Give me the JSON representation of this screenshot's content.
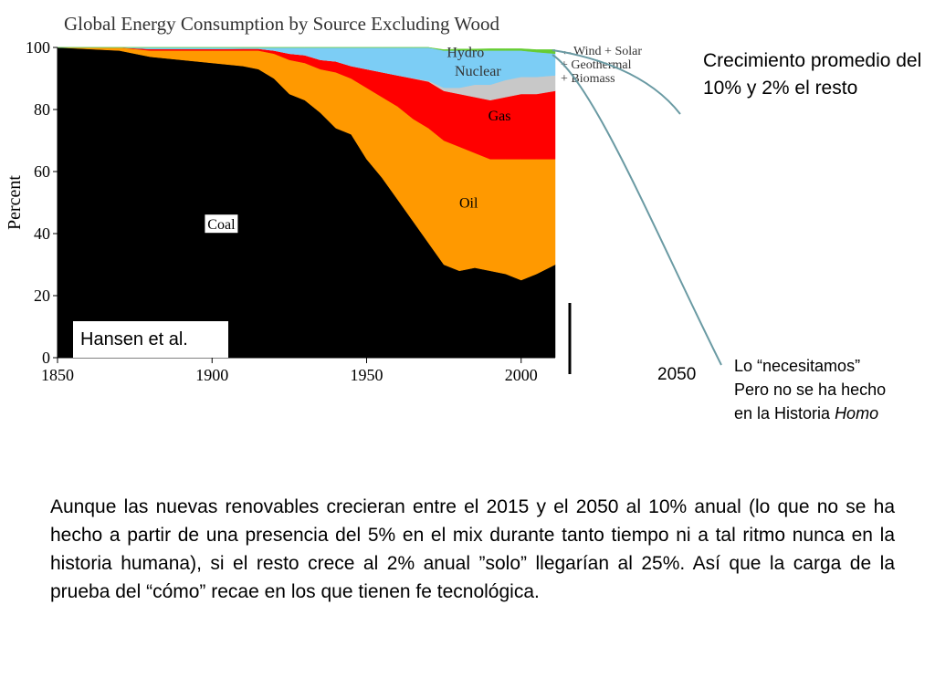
{
  "chart_data": {
    "type": "area",
    "stacked": true,
    "title": "Global Energy Consumption by Source Excluding Wood",
    "ylabel": "Percent",
    "xlim": [
      1850,
      2011
    ],
    "ylim": [
      0,
      100
    ],
    "x_ticks": [
      1850,
      1900,
      1950,
      2000
    ],
    "y_ticks": [
      0,
      20,
      40,
      60,
      80,
      100
    ],
    "x": [
      1850,
      1870,
      1880,
      1890,
      1900,
      1910,
      1915,
      1920,
      1925,
      1930,
      1935,
      1940,
      1945,
      1950,
      1955,
      1960,
      1965,
      1970,
      1975,
      1980,
      1985,
      1990,
      1995,
      2000,
      2005,
      2011
    ],
    "series": [
      {
        "name": "Coal",
        "color": "#000000",
        "label": "Coal",
        "values": [
          100,
          99,
          97,
          96,
          95,
          94,
          93,
          90,
          85,
          83,
          79,
          74,
          72,
          64,
          58,
          51,
          44,
          37,
          30,
          28,
          29,
          28,
          27,
          25,
          27,
          30
        ]
      },
      {
        "name": "Oil",
        "color": "#ff9900",
        "label": "Oil",
        "values": [
          0,
          1,
          2,
          3,
          4,
          5,
          6,
          8,
          11,
          12,
          14,
          18,
          18,
          23,
          26,
          30,
          33,
          37,
          40,
          40,
          37,
          36,
          37,
          39,
          37,
          34
        ]
      },
      {
        "name": "Gas",
        "color": "#ff0000",
        "label": "Gas",
        "values": [
          0,
          0,
          0.5,
          0.5,
          0.5,
          0.6,
          0.6,
          1,
          2,
          2.5,
          3,
          3.5,
          4,
          6,
          8,
          10,
          13,
          15,
          16,
          17,
          18,
          19,
          20,
          21,
          21,
          22
        ]
      },
      {
        "name": "Nuclear",
        "color": "#c8c8c8",
        "label": "Nuclear",
        "values": [
          0,
          0,
          0,
          0,
          0,
          0,
          0,
          0,
          0,
          0,
          0,
          0,
          0,
          0,
          0,
          0,
          0.1,
          0.3,
          1,
          2,
          4,
          5,
          5.5,
          5.5,
          5.5,
          5
        ]
      },
      {
        "name": "Hydro",
        "color": "#7ccdf5",
        "label": "Hydro",
        "values": [
          0,
          0,
          0.5,
          0.5,
          0.5,
          0.4,
          0.4,
          1,
          2,
          2.5,
          4,
          4.5,
          6,
          7,
          8,
          9,
          9.9,
          10.7,
          12,
          12,
          11,
          11,
          9.5,
          8.5,
          8,
          7
        ]
      },
      {
        "name": "Wind + Solar + Geothermal + Biomass",
        "color": "#66cc33",
        "label": "Wind + Solar\n+ Geothermal\n+ Biomass",
        "values": [
          0,
          0,
          0,
          0,
          0,
          0,
          0,
          0,
          0,
          0,
          0,
          0,
          0,
          0,
          0,
          0,
          0,
          0,
          0.3,
          0.5,
          0.5,
          0.6,
          0.6,
          0.6,
          0.8,
          1.3
        ]
      }
    ],
    "annotations": [
      "Hansen et al.",
      "Wind + Solar",
      "+ Geothermal",
      "+ Biomass"
    ]
  },
  "side_notes": {
    "growth": "Crecimiento promedio del 10% y 2% el resto",
    "year_2050": "2050",
    "need_line1": "Lo “necesitamos”",
    "need_line2": "Pero no se ha hecho",
    "need_line3_prefix": "en la Historia ",
    "need_line3_italic": "Homo"
  },
  "paragraph": "Aunque las nuevas renovables crecieran entre el 2015 y el 2050 al 10% anual (lo que no se ha hecho a partir de una presencia del 5% en el mix durante tanto tiempo ni a tal ritmo nunca en la historia humana), si el resto crece al 2% anual ”solo” llegarían al 25%. Así que la carga de la prueba del “cómo” recae en los que tienen fe tecnológica.",
  "colors": {
    "coal": "#000000",
    "oil": "#ff9900",
    "gas": "#ff0000",
    "nuclear": "#c8c8c8",
    "hydro": "#7ccdf5",
    "renewables": "#66cc33",
    "callout_line": "#6a9aa3"
  }
}
